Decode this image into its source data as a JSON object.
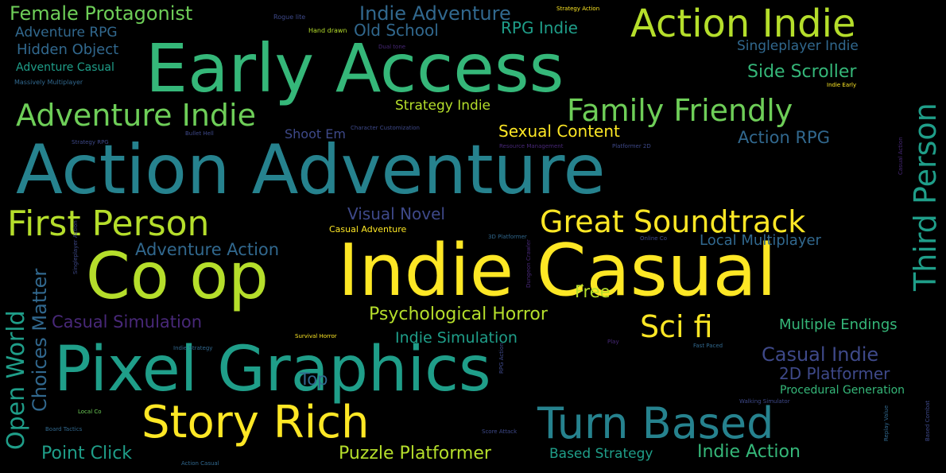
{
  "words": {
    "early_access": "Early Access",
    "action_adventure": "Action Adventure",
    "co_op": "Co op",
    "indie_casual": "Indie Casual",
    "pixel_graphics": "Pixel Graphics",
    "story_rich": "Story Rich",
    "turn_based": "Turn Based",
    "action_indie": "Action Indie",
    "first_person": "First Person",
    "great_soundtrack": "Great Soundtrack",
    "sci_fi": "Sci fi",
    "family_friendly": "Family Friendly",
    "adventure_indie": "Adventure Indie",
    "third_person": "Third Person",
    "open_world": "Open World",
    "choices_matter": "Choices Matter",
    "female_protagonist": "Female Protagonist",
    "indie_adventure": "Indie Adventure",
    "old_school": "Old School",
    "rpg_indie": "RPG Indie",
    "adventure_rpg": "Adventure RPG",
    "hidden_object": "Hidden Object",
    "adventure_casual": "Adventure Casual",
    "singleplayer_indie": "Singleplayer Indie",
    "side_scroller": "Side Scroller",
    "strategy_indie": "Strategy Indie",
    "sexual_content": "Sexual Content",
    "shoot_em": "Shoot Em",
    "action_rpg": "Action RPG",
    "visual_novel": "Visual Novel",
    "local_multiplayer": "Local Multiplayer",
    "adventure_action": "Adventure Action",
    "free": "Free",
    "casual_simulation": "Casual Simulation",
    "psychological_horror": "Psychological Horror",
    "multiple_endings": "Multiple Endings",
    "indie_simulation": "Indie Simulation",
    "casual_indie": "Casual Indie",
    "platformer_2d": "2D Platformer",
    "top": "Top",
    "procedural_generation": "Procedural Generation",
    "point_click": "Point Click",
    "puzzle_platformer": "Puzzle Platformer",
    "based_strategy": "Based Strategy",
    "indie_action": "Indie Action",
    "casual_adventure": "Casual Adventure",
    "rogue_lite": "Rogue lite",
    "strategy_action": "Strategy Action",
    "hand_drawn": "Hand drawn",
    "dual_tone": "Dual tone",
    "massively_multiplayer": "Massively Multiplayer",
    "indie_early": "Indie Early",
    "strategy_rpg": "Strategy RPG",
    "bullet_hell": "Bullet Hell",
    "character_customization": "Character Customization",
    "resource_management": "Resource Management",
    "platformer_2d_small": "Platformer 2D",
    "casual_action": "Casual Action",
    "platformer_3d": "3D Platformer",
    "online_co": "Online Co",
    "singleplayer_action": "Singleplayer Action",
    "dungeon_crawler": "Dungeon Crawler",
    "indie_strategy": "Indie Strategy",
    "survival_horror": "Survival Horror",
    "rpg_action": "RPG Action",
    "play": "Play",
    "fast_paced": "Fast Paced",
    "walking_simulator": "Walking Simulator",
    "local_co": "Local Co",
    "board_tactics": "Board Tactics",
    "score_attack": "Score Attack",
    "action_casual": "Action Casual",
    "replay_value": "Replay Value",
    "board_combat": "Based Combat"
  },
  "colors": {
    "yellow": "#fde725",
    "lime": "#b5de2b",
    "green": "#6ece58",
    "teal": "#35b779",
    "cyan": "#1f9e89",
    "blue": "#26828e",
    "steel": "#31688e",
    "navy": "#3e4989",
    "purple": "#482878",
    "background": "#000000"
  }
}
